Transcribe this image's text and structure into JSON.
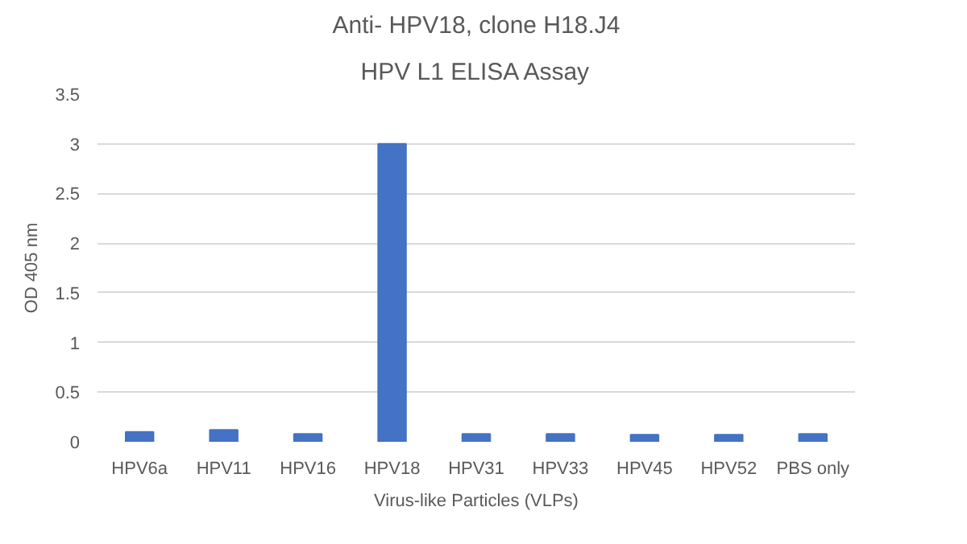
{
  "chart_data": {
    "type": "bar",
    "title": "Anti- HPV18, clone H18.J4",
    "subtitle": "HPV L1 ELISA Assay",
    "xlabel": "Virus-like Particles (VLPs)",
    "ylabel": "OD 405 nm",
    "categories": [
      "HPV6a",
      "HPV11",
      "HPV16",
      "HPV18",
      "HPV31",
      "HPV33",
      "HPV45",
      "HPV52",
      "PBS only"
    ],
    "values": [
      0.1,
      0.12,
      0.08,
      3.0,
      0.08,
      0.08,
      0.07,
      0.07,
      0.08
    ],
    "color": "#4472c4",
    "ylim": [
      0,
      3.5
    ],
    "yticks": [
      0,
      0.5,
      1,
      1.5,
      2,
      2.5,
      3,
      3.5
    ],
    "grid": "y"
  }
}
